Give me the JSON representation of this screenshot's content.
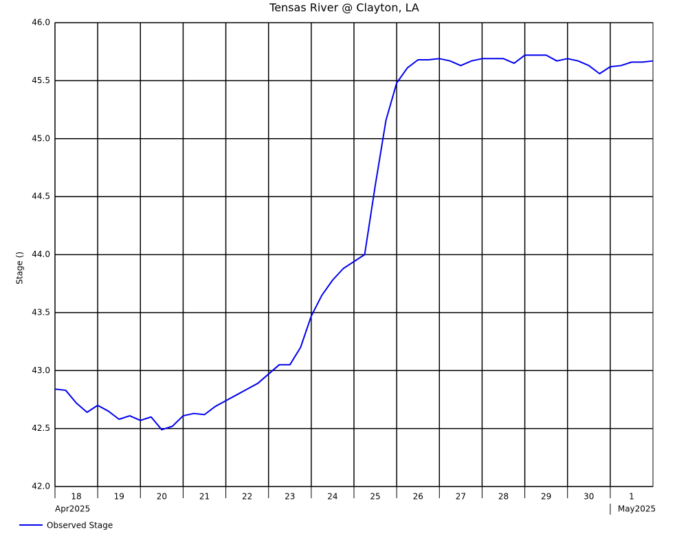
{
  "chart_data": {
    "type": "line",
    "title": "Tensas River @ Clayton, LA",
    "y_label": "Stage ()",
    "x": [
      "2025-04-18T00:00",
      "2025-04-18T06:00",
      "2025-04-18T12:00",
      "2025-04-18T18:00",
      "2025-04-19T00:00",
      "2025-04-19T06:00",
      "2025-04-19T12:00",
      "2025-04-19T18:00",
      "2025-04-20T00:00",
      "2025-04-20T06:00",
      "2025-04-20T12:00",
      "2025-04-20T18:00",
      "2025-04-21T00:00",
      "2025-04-21T06:00",
      "2025-04-21T12:00",
      "2025-04-21T18:00",
      "2025-04-22T00:00",
      "2025-04-22T06:00",
      "2025-04-22T12:00",
      "2025-04-22T18:00",
      "2025-04-23T00:00",
      "2025-04-23T06:00",
      "2025-04-23T12:00",
      "2025-04-23T18:00",
      "2025-04-24T00:00",
      "2025-04-24T06:00",
      "2025-04-24T12:00",
      "2025-04-24T18:00",
      "2025-04-25T00:00",
      "2025-04-25T06:00",
      "2025-04-25T12:00",
      "2025-04-25T18:00",
      "2025-04-26T00:00",
      "2025-04-26T06:00",
      "2025-04-26T12:00",
      "2025-04-26T18:00",
      "2025-04-27T00:00",
      "2025-04-27T06:00",
      "2025-04-27T12:00",
      "2025-04-27T18:00",
      "2025-04-28T00:00",
      "2025-04-28T06:00",
      "2025-04-28T12:00",
      "2025-04-28T18:00",
      "2025-04-29T00:00",
      "2025-04-29T06:00",
      "2025-04-29T12:00",
      "2025-04-29T18:00",
      "2025-04-30T00:00",
      "2025-04-30T06:00",
      "2025-04-30T12:00",
      "2025-04-30T18:00",
      "2025-05-01T00:00",
      "2025-05-01T06:00",
      "2025-05-01T12:00",
      "2025-05-01T18:00",
      "2025-05-02T00:00"
    ],
    "series": [
      {
        "name": "Observed Stage",
        "color": "#0000ee",
        "values": [
          42.84,
          42.83,
          42.72,
          42.64,
          42.7,
          42.65,
          42.58,
          42.61,
          42.57,
          42.6,
          42.49,
          42.52,
          42.61,
          42.63,
          42.62,
          42.69,
          42.74,
          42.79,
          42.84,
          42.89,
          42.97,
          43.05,
          43.05,
          43.2,
          43.47,
          43.65,
          43.78,
          43.88,
          43.94,
          44.0,
          44.6,
          45.16,
          45.48,
          45.61,
          45.68,
          45.68,
          45.69,
          45.67,
          45.63,
          45.67,
          45.69,
          45.69,
          45.69,
          45.65,
          45.72,
          45.72,
          45.72,
          45.67,
          45.69,
          45.67,
          45.63,
          45.56,
          45.62,
          45.63,
          45.66,
          45.66,
          45.67
        ]
      }
    ],
    "xlim": [
      "2025-04-18T00:00",
      "2025-05-02T00:00"
    ],
    "xticks": [
      {
        "value": "2025-04-18T00:00",
        "label": "18"
      },
      {
        "value": "2025-04-19T00:00",
        "label": "19"
      },
      {
        "value": "2025-04-20T00:00",
        "label": "20"
      },
      {
        "value": "2025-04-21T00:00",
        "label": "21"
      },
      {
        "value": "2025-04-22T00:00",
        "label": "22"
      },
      {
        "value": "2025-04-23T00:00",
        "label": "23"
      },
      {
        "value": "2025-04-24T00:00",
        "label": "24"
      },
      {
        "value": "2025-04-25T00:00",
        "label": "25"
      },
      {
        "value": "2025-04-26T00:00",
        "label": "26"
      },
      {
        "value": "2025-04-27T00:00",
        "label": "27"
      },
      {
        "value": "2025-04-28T00:00",
        "label": "28"
      },
      {
        "value": "2025-04-29T00:00",
        "label": "29"
      },
      {
        "value": "2025-04-30T00:00",
        "label": "30"
      },
      {
        "value": "2025-05-01T00:00",
        "label": "1"
      }
    ],
    "x_period_labels": [
      {
        "value": "2025-04-18T00:00",
        "label": "Apr2025"
      },
      {
        "value": "2025-05-01T00:00",
        "label": "May2025"
      }
    ],
    "ylim": [
      42,
      46
    ],
    "yticks": [
      {
        "value": 42,
        "label": "42.0"
      },
      {
        "value": 42.5,
        "label": "42.5"
      },
      {
        "value": 43,
        "label": "43.0"
      },
      {
        "value": 43.5,
        "label": "43.5"
      },
      {
        "value": 44,
        "label": "44.0"
      },
      {
        "value": 44.5,
        "label": "44.5"
      },
      {
        "value": 45,
        "label": "45.0"
      },
      {
        "value": 45.5,
        "label": "45.5"
      },
      {
        "value": 46,
        "label": "46.0"
      }
    ],
    "grid": true,
    "legend": "bottom-left"
  }
}
